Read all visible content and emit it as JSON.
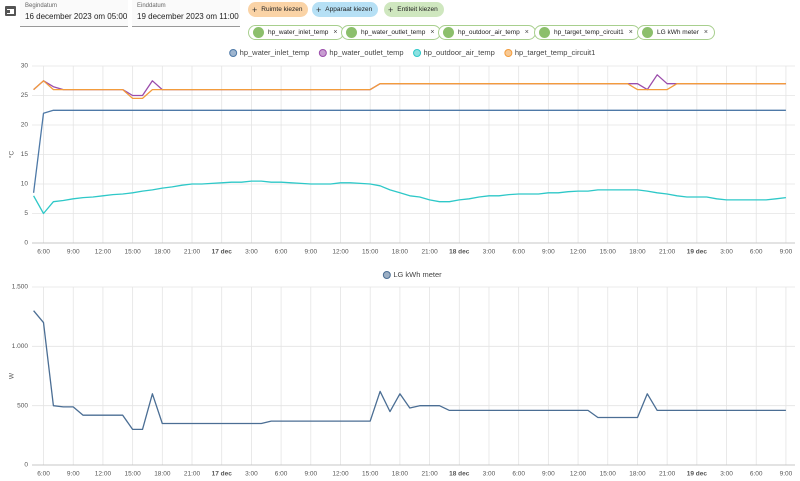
{
  "header": {
    "begin_label": "Begindatum",
    "begin_value": "16 december 2023 om 05:00",
    "end_label": "Einddatum",
    "end_value": "19 december 2023 om 11:00",
    "pickers": [
      "Ruimte kiezen",
      "Apparaat kiezen",
      "Entiteit kiezen"
    ],
    "entities": [
      "hp_water_inlet_temp",
      "hp_water_outlet_temp",
      "hp_outdoor_air_temp",
      "hp_target_temp_circuit1",
      "LG kWh meter"
    ]
  },
  "chart_data": [
    {
      "type": "line",
      "y_label": "°C",
      "x": [
        "2023-12-16T05:00",
        "2023-12-16T06:00",
        "2023-12-16T07:00",
        "2023-12-16T08:00",
        "2023-12-16T09:00",
        "2023-12-16T10:00",
        "2023-12-16T11:00",
        "2023-12-16T12:00",
        "2023-12-16T13:00",
        "2023-12-16T14:00",
        "2023-12-16T15:00",
        "2023-12-16T16:00",
        "2023-12-16T17:00",
        "2023-12-16T18:00",
        "2023-12-16T19:00",
        "2023-12-16T20:00",
        "2023-12-16T21:00",
        "2023-12-16T22:00",
        "2023-12-16T23:00",
        "2023-12-17T00:00",
        "2023-12-17T01:00",
        "2023-12-17T02:00",
        "2023-12-17T03:00",
        "2023-12-17T04:00",
        "2023-12-17T05:00",
        "2023-12-17T06:00",
        "2023-12-17T07:00",
        "2023-12-17T08:00",
        "2023-12-17T09:00",
        "2023-12-17T10:00",
        "2023-12-17T11:00",
        "2023-12-17T12:00",
        "2023-12-17T13:00",
        "2023-12-17T14:00",
        "2023-12-17T15:00",
        "2023-12-17T16:00",
        "2023-12-17T17:00",
        "2023-12-17T18:00",
        "2023-12-17T19:00",
        "2023-12-17T20:00",
        "2023-12-17T21:00",
        "2023-12-17T22:00",
        "2023-12-17T23:00",
        "2023-12-18T00:00",
        "2023-12-18T01:00",
        "2023-12-18T02:00",
        "2023-12-18T03:00",
        "2023-12-18T04:00",
        "2023-12-18T05:00",
        "2023-12-18T06:00",
        "2023-12-18T07:00",
        "2023-12-18T08:00",
        "2023-12-18T09:00",
        "2023-12-18T10:00",
        "2023-12-18T11:00",
        "2023-12-18T12:00",
        "2023-12-18T13:00",
        "2023-12-18T14:00",
        "2023-12-18T15:00",
        "2023-12-18T16:00",
        "2023-12-18T17:00",
        "2023-12-18T18:00",
        "2023-12-18T19:00",
        "2023-12-18T20:00",
        "2023-12-18T21:00",
        "2023-12-18T22:00",
        "2023-12-18T23:00",
        "2023-12-19T00:00",
        "2023-12-19T01:00",
        "2023-12-19T02:00",
        "2023-12-19T03:00",
        "2023-12-19T04:00",
        "2023-12-19T05:00",
        "2023-12-19T06:00",
        "2023-12-19T07:00",
        "2023-12-19T08:00",
        "2023-12-19T09:00"
      ],
      "series": [
        {
          "name": "hp_water_inlet_temp",
          "color": "#4e79a7",
          "values": [
            8.5,
            22,
            22.5,
            22.5,
            22.5,
            22.5,
            22.5,
            22.5,
            22.5,
            22.5,
            22.5,
            22.5,
            22.5,
            22.5,
            22.5,
            22.5,
            22.5,
            22.5,
            22.5,
            22.5,
            22.5,
            22.5,
            22.5,
            22.5,
            22.5,
            22.5,
            22.5,
            22.5,
            22.5,
            22.5,
            22.5,
            22.5,
            22.5,
            22.5,
            22.5,
            22.5,
            22.5,
            22.5,
            22.5,
            22.5,
            22.5,
            22.5,
            22.5,
            22.5,
            22.5,
            22.5,
            22.5,
            22.5,
            22.5,
            22.5,
            22.5,
            22.5,
            22.5,
            22.5,
            22.5,
            22.5,
            22.5,
            22.5,
            22.5,
            22.5,
            22.5,
            22.5,
            22.5,
            22.5,
            22.5,
            22.5,
            22.5,
            22.5,
            22.5,
            22.5,
            22.5,
            22.5,
            22.5,
            22.5,
            22.5,
            22.5,
            22.5
          ]
        },
        {
          "name": "hp_water_outlet_temp",
          "color": "#9b4dab",
          "values": [
            26,
            27.5,
            26.5,
            26,
            26,
            26,
            26,
            26,
            26,
            26,
            25,
            25,
            27.5,
            26,
            26,
            26,
            26,
            26,
            26,
            26,
            26,
            26,
            26,
            26,
            26,
            26,
            26,
            26,
            26,
            26,
            26,
            26,
            26,
            26,
            26,
            27,
            27,
            27,
            27,
            27,
            27,
            27,
            27,
            27,
            27,
            27,
            27,
            27,
            27,
            27,
            27,
            27,
            27,
            27,
            27,
            27,
            27,
            27,
            27,
            27,
            27,
            27,
            26,
            28.5,
            27,
            27,
            27,
            27,
            27,
            27,
            27,
            27,
            27,
            27,
            27,
            27,
            27
          ]
        },
        {
          "name": "hp_outdoor_air_temp",
          "color": "#2ec8c8",
          "values": [
            8,
            5,
            7,
            7.2,
            7.5,
            7.7,
            7.8,
            8,
            8.2,
            8.3,
            8.5,
            8.8,
            9,
            9.3,
            9.5,
            9.8,
            10,
            10,
            10.1,
            10.2,
            10.3,
            10.3,
            10.5,
            10.5,
            10.3,
            10.3,
            10.2,
            10.1,
            10,
            10,
            10,
            10.2,
            10.2,
            10.1,
            10,
            9.7,
            9,
            8.5,
            8,
            7.8,
            7.3,
            7,
            7,
            7.3,
            7.5,
            7.8,
            8,
            8,
            8.2,
            8.3,
            8.3,
            8.3,
            8.5,
            8.5,
            8.7,
            8.8,
            8.8,
            9,
            9,
            9,
            9,
            9,
            8.8,
            8.5,
            8.3,
            8,
            7.8,
            7.8,
            7.8,
            7.5,
            7.3,
            7.3,
            7.3,
            7.3,
            7.3,
            7.5,
            7.7
          ]
        },
        {
          "name": "hp_target_temp_circuit1",
          "color": "#f39c3c",
          "values": [
            26,
            27.5,
            26,
            26,
            26,
            26,
            26,
            26,
            26,
            26,
            24.5,
            24.5,
            26,
            26,
            26,
            26,
            26,
            26,
            26,
            26,
            26,
            26,
            26,
            26,
            26,
            26,
            26,
            26,
            26,
            26,
            26,
            26,
            26,
            26,
            26,
            27,
            27,
            27,
            27,
            27,
            27,
            27,
            27,
            27,
            27,
            27,
            27,
            27,
            27,
            27,
            27,
            27,
            27,
            27,
            27,
            27,
            27,
            27,
            27,
            27,
            27,
            26,
            26,
            26,
            26,
            27,
            27,
            27,
            27,
            27,
            27,
            27,
            27,
            27,
            27,
            27,
            27
          ]
        }
      ],
      "xlim": [
        "2023-12-16T04:50",
        "2023-12-19T09:55"
      ],
      "xticks": [
        {
          "value": "2023-12-16T06:00",
          "label": "6:00"
        },
        {
          "value": "2023-12-16T09:00",
          "label": "9:00"
        },
        {
          "value": "2023-12-16T12:00",
          "label": "12:00"
        },
        {
          "value": "2023-12-16T15:00",
          "label": "15:00"
        },
        {
          "value": "2023-12-16T18:00",
          "label": "18:00"
        },
        {
          "value": "2023-12-16T21:00",
          "label": "21:00"
        },
        {
          "value": "2023-12-17T00:00",
          "label": "17 dec"
        },
        {
          "value": "2023-12-17T03:00",
          "label": "3:00"
        },
        {
          "value": "2023-12-17T06:00",
          "label": "6:00"
        },
        {
          "value": "2023-12-17T09:00",
          "label": "9:00"
        },
        {
          "value": "2023-12-17T12:00",
          "label": "12:00"
        },
        {
          "value": "2023-12-17T15:00",
          "label": "15:00"
        },
        {
          "value": "2023-12-17T18:00",
          "label": "18:00"
        },
        {
          "value": "2023-12-17T21:00",
          "label": "21:00"
        },
        {
          "value": "2023-12-18T00:00",
          "label": "18 dec"
        },
        {
          "value": "2023-12-18T03:00",
          "label": "3:00"
        },
        {
          "value": "2023-12-18T06:00",
          "label": "6:00"
        },
        {
          "value": "2023-12-18T09:00",
          "label": "9:00"
        },
        {
          "value": "2023-12-18T12:00",
          "label": "12:00"
        },
        {
          "value": "2023-12-18T15:00",
          "label": "15:00"
        },
        {
          "value": "2023-12-18T18:00",
          "label": "18:00"
        },
        {
          "value": "2023-12-18T21:00",
          "label": "21:00"
        },
        {
          "value": "2023-12-19T00:00",
          "label": "19 dec"
        },
        {
          "value": "2023-12-19T03:00",
          "label": "3:00"
        },
        {
          "value": "2023-12-19T06:00",
          "label": "6:00"
        },
        {
          "value": "2023-12-19T09:00",
          "label": "9:00"
        }
      ],
      "ylim": [
        0,
        30
      ],
      "yticks": [
        0,
        5,
        10,
        15,
        20,
        25,
        30
      ],
      "grid": true
    },
    {
      "type": "line",
      "y_label": "W",
      "x": [
        "2023-12-16T05:00",
        "2023-12-16T06:00",
        "2023-12-16T07:00",
        "2023-12-16T08:00",
        "2023-12-16T09:00",
        "2023-12-16T10:00",
        "2023-12-16T11:00",
        "2023-12-16T12:00",
        "2023-12-16T13:00",
        "2023-12-16T14:00",
        "2023-12-16T15:00",
        "2023-12-16T16:00",
        "2023-12-16T17:00",
        "2023-12-16T18:00",
        "2023-12-16T19:00",
        "2023-12-16T20:00",
        "2023-12-16T21:00",
        "2023-12-16T22:00",
        "2023-12-16T23:00",
        "2023-12-17T00:00",
        "2023-12-17T01:00",
        "2023-12-17T02:00",
        "2023-12-17T03:00",
        "2023-12-17T04:00",
        "2023-12-17T05:00",
        "2023-12-17T06:00",
        "2023-12-17T07:00",
        "2023-12-17T08:00",
        "2023-12-17T09:00",
        "2023-12-17T10:00",
        "2023-12-17T11:00",
        "2023-12-17T12:00",
        "2023-12-17T13:00",
        "2023-12-17T14:00",
        "2023-12-17T15:00",
        "2023-12-17T16:00",
        "2023-12-17T17:00",
        "2023-12-17T18:00",
        "2023-12-17T19:00",
        "2023-12-17T20:00",
        "2023-12-17T21:00",
        "2023-12-17T22:00",
        "2023-12-17T23:00",
        "2023-12-18T00:00",
        "2023-12-18T01:00",
        "2023-12-18T02:00",
        "2023-12-18T03:00",
        "2023-12-18T04:00",
        "2023-12-18T05:00",
        "2023-12-18T06:00",
        "2023-12-18T07:00",
        "2023-12-18T08:00",
        "2023-12-18T09:00",
        "2023-12-18T10:00",
        "2023-12-18T11:00",
        "2023-12-18T12:00",
        "2023-12-18T13:00",
        "2023-12-18T14:00",
        "2023-12-18T15:00",
        "2023-12-18T16:00",
        "2023-12-18T17:00",
        "2023-12-18T18:00",
        "2023-12-18T19:00",
        "2023-12-18T20:00",
        "2023-12-18T21:00",
        "2023-12-18T22:00",
        "2023-12-18T23:00",
        "2023-12-19T00:00",
        "2023-12-19T01:00",
        "2023-12-19T02:00",
        "2023-12-19T03:00",
        "2023-12-19T04:00",
        "2023-12-19T05:00",
        "2023-12-19T06:00",
        "2023-12-19T07:00",
        "2023-12-19T08:00",
        "2023-12-19T09:00"
      ],
      "series": [
        {
          "name": "LG kWh meter",
          "color": "#4b6e94",
          "values": [
            1300,
            1200,
            500,
            490,
            490,
            420,
            420,
            420,
            420,
            420,
            300,
            300,
            600,
            350,
            350,
            350,
            350,
            350,
            350,
            350,
            350,
            350,
            350,
            350,
            370,
            370,
            370,
            370,
            370,
            370,
            370,
            370,
            370,
            370,
            370,
            620,
            450,
            600,
            480,
            500,
            500,
            500,
            460,
            460,
            460,
            460,
            460,
            460,
            460,
            460,
            460,
            460,
            460,
            460,
            460,
            460,
            460,
            400,
            400,
            400,
            400,
            400,
            600,
            460,
            460,
            460,
            460,
            460,
            460,
            460,
            460,
            460,
            460,
            460,
            460,
            460,
            460
          ]
        }
      ],
      "xlim": [
        "2023-12-16T04:50",
        "2023-12-19T09:55"
      ],
      "xticks": [
        {
          "value": "2023-12-16T06:00",
          "label": "6:00"
        },
        {
          "value": "2023-12-16T09:00",
          "label": "9:00"
        },
        {
          "value": "2023-12-16T12:00",
          "label": "12:00"
        },
        {
          "value": "2023-12-16T15:00",
          "label": "15:00"
        },
        {
          "value": "2023-12-16T18:00",
          "label": "18:00"
        },
        {
          "value": "2023-12-16T21:00",
          "label": "21:00"
        },
        {
          "value": "2023-12-17T00:00",
          "label": "17 dec"
        },
        {
          "value": "2023-12-17T03:00",
          "label": "3:00"
        },
        {
          "value": "2023-12-17T06:00",
          "label": "6:00"
        },
        {
          "value": "2023-12-17T09:00",
          "label": "9:00"
        },
        {
          "value": "2023-12-17T12:00",
          "label": "12:00"
        },
        {
          "value": "2023-12-17T15:00",
          "label": "15:00"
        },
        {
          "value": "2023-12-17T18:00",
          "label": "18:00"
        },
        {
          "value": "2023-12-17T21:00",
          "label": "21:00"
        },
        {
          "value": "2023-12-18T00:00",
          "label": "18 dec"
        },
        {
          "value": "2023-12-18T03:00",
          "label": "3:00"
        },
        {
          "value": "2023-12-18T06:00",
          "label": "6:00"
        },
        {
          "value": "2023-12-18T09:00",
          "label": "9:00"
        },
        {
          "value": "2023-12-18T12:00",
          "label": "12:00"
        },
        {
          "value": "2023-12-18T15:00",
          "label": "15:00"
        },
        {
          "value": "2023-12-18T18:00",
          "label": "18:00"
        },
        {
          "value": "2023-12-18T21:00",
          "label": "21:00"
        },
        {
          "value": "2023-12-19T00:00",
          "label": "19 dec"
        },
        {
          "value": "2023-12-19T03:00",
          "label": "3:00"
        },
        {
          "value": "2023-12-19T06:00",
          "label": "6:00"
        },
        {
          "value": "2023-12-19T09:00",
          "label": "9:00"
        }
      ],
      "ylim": [
        0,
        1500
      ],
      "yticks": [
        0,
        500,
        {
          "value": 1000,
          "label": "1.000"
        },
        {
          "value": 1500,
          "label": "1.500"
        }
      ],
      "grid": true
    }
  ]
}
